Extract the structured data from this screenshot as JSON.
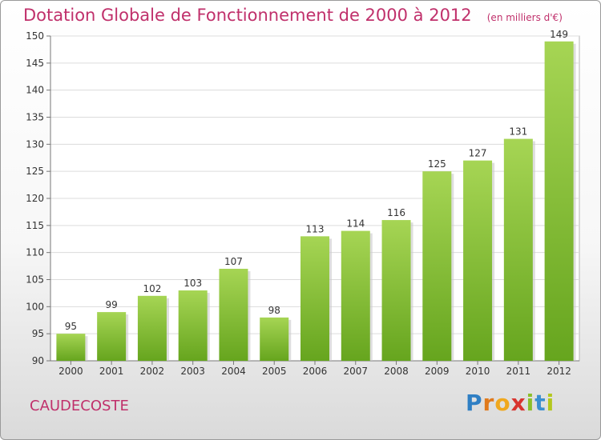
{
  "header": {
    "title": "Dotation Globale de Fonctionnement de 2000 à 2012",
    "unit": "(en milliers d'€)"
  },
  "commune": "CAUDECOSTE",
  "logo": {
    "letters": [
      "P",
      "r",
      "o",
      "x",
      "i",
      "t",
      "i"
    ],
    "colors": [
      "#2f7fc4",
      "#e07a1c",
      "#f0a81e",
      "#d8342f",
      "#8bbf2a",
      "#3a8fd0",
      "#b3c71e"
    ]
  },
  "chart_data": {
    "type": "bar",
    "title": "Dotation Globale de Fonctionnement de 2000 à 2012",
    "subtitle": "(en milliers d'€)",
    "categories": [
      "2000",
      "2001",
      "2002",
      "2003",
      "2004",
      "2005",
      "2006",
      "2007",
      "2008",
      "2009",
      "2010",
      "2011",
      "2012"
    ],
    "values": [
      95,
      99,
      102,
      103,
      107,
      98,
      113,
      114,
      116,
      125,
      127,
      131,
      149
    ],
    "ylim": [
      90,
      150
    ],
    "yticks": [
      90,
      95,
      100,
      105,
      110,
      115,
      120,
      125,
      130,
      135,
      140,
      145,
      150
    ],
    "grid": true,
    "bar_color_top": "#a6d554",
    "bar_color_bottom": "#66a51e"
  }
}
